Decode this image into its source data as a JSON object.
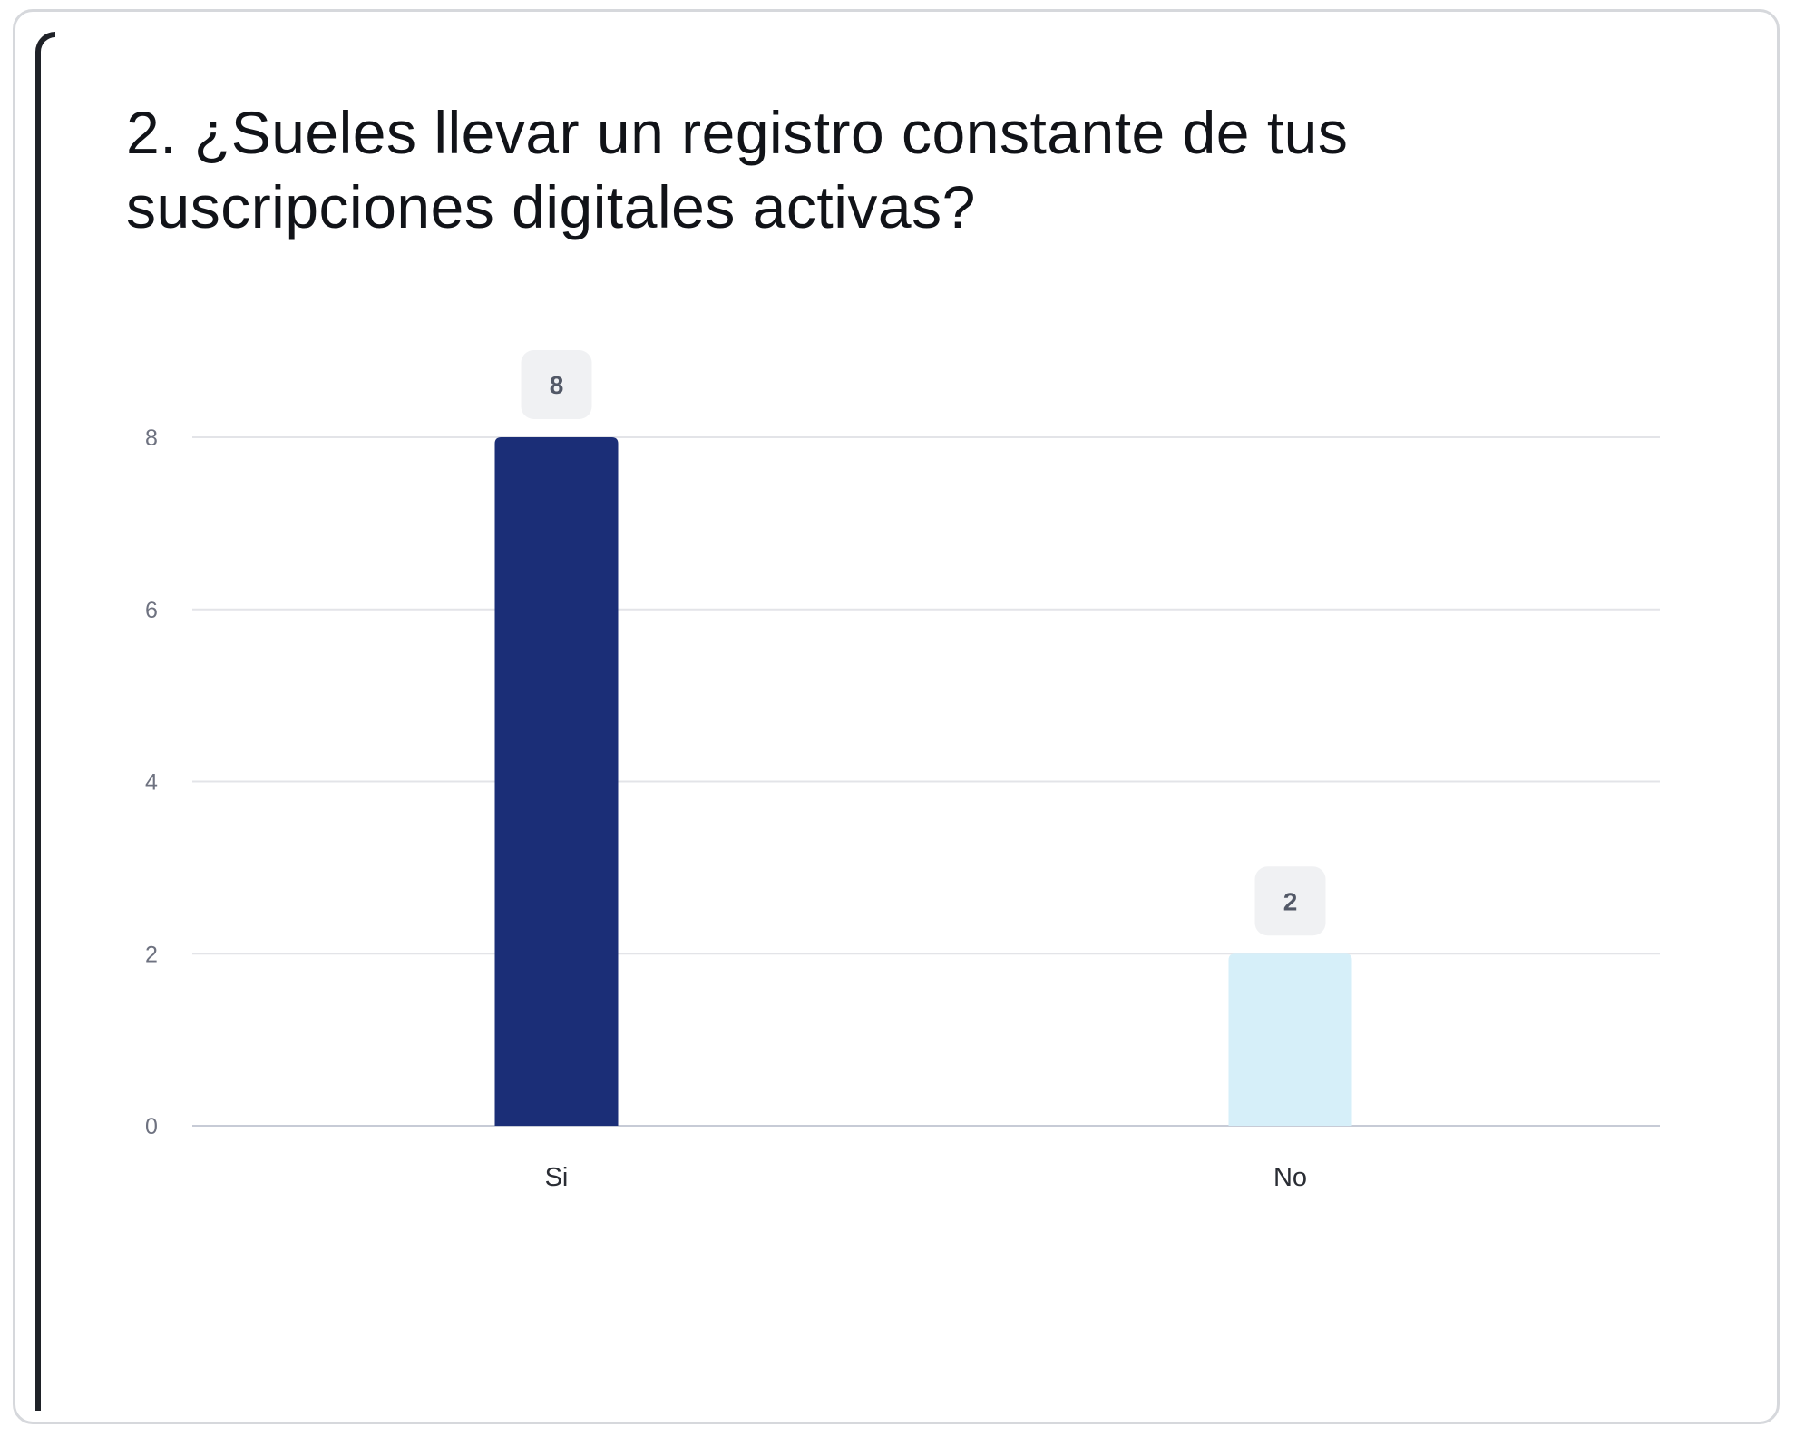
{
  "chart_data": {
    "type": "bar",
    "title": "2. ¿Sueles llevar un registro constante de tus suscripciones digitales activas?",
    "categories": [
      "Si",
      "No"
    ],
    "values": [
      8,
      2
    ],
    "data_labels": [
      "8",
      "2"
    ],
    "yticks": [
      0,
      2,
      4,
      6,
      8
    ],
    "ylim": [
      0,
      8
    ],
    "xlabel": "",
    "ylabel": "",
    "grid": true,
    "legend": "none",
    "colors": [
      "#1b2e77",
      "#d6eff9"
    ],
    "label_bg": "#f0f1f3",
    "grid_color": "#e3e4e8",
    "axis_color": "#c7cbd6"
  }
}
